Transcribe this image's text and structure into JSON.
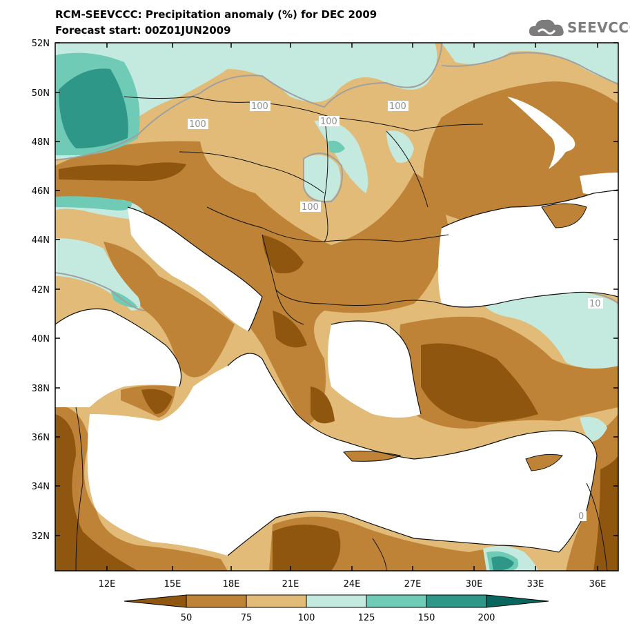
{
  "header": {
    "title": "RCM-SEEVCCC: Precipitation anomaly (%) for DEC 2009",
    "subtitle": "Forecast start: 00Z01JUN2009"
  },
  "logo": {
    "text": "SEEVCCC",
    "icon": "cloud-icon"
  },
  "map": {
    "lat_labels": [
      "52N",
      "50N",
      "48N",
      "46N",
      "44N",
      "42N",
      "40N",
      "38N",
      "36N",
      "34N",
      "32N"
    ],
    "lon_labels": [
      "12E",
      "15E",
      "18E",
      "21E",
      "24E",
      "27E",
      "30E",
      "33E",
      "36E"
    ],
    "contour_labels": [
      "100",
      "100",
      "100",
      "100",
      "100",
      "10",
      "0"
    ]
  },
  "colorbar": {
    "levels": [
      "50",
      "75",
      "100",
      "125",
      "150",
      "200"
    ],
    "colors": [
      "#8f560f",
      "#be8337",
      "#e1bb77",
      "#c4eadf",
      "#6fcbb5",
      "#2e9788",
      "#08665e"
    ]
  },
  "colors": {
    "sea": "#ffffff",
    "land_default": "#e1bb77",
    "boundary": "#111111",
    "contour_100": "#a0a0a0"
  }
}
